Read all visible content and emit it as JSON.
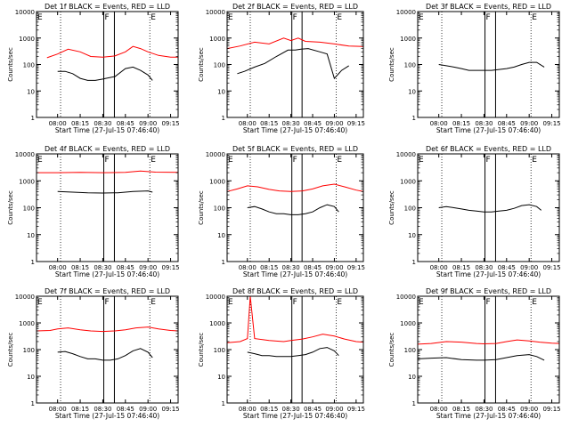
{
  "figure": {
    "background": "#ffffff",
    "axis_color": "#000000",
    "events_color": "#000000",
    "lld_color": "#ff0000"
  },
  "common": {
    "xlabel": "Start Time (27-Jul-15 07:46:40)",
    "ylabel": "Counts/sec",
    "yticks": [
      "1",
      "10",
      "100",
      "1000",
      "10000"
    ],
    "xticks": [
      "08:00",
      "08:15",
      "08:30",
      "08:45",
      "09:00",
      "09:15"
    ],
    "markers": [
      "E",
      "F",
      "E"
    ]
  },
  "chart_data": [
    {
      "type": "line",
      "title": "Det 1f BLACK = Events, RED = LLD",
      "y_scale": "log",
      "ylim": [
        1,
        10000
      ],
      "series": [
        {
          "name": "Events",
          "color": "#000000",
          "x": [
            "08:00",
            "08:05",
            "08:10",
            "08:15",
            "08:20",
            "08:25",
            "08:30",
            "08:32",
            "08:38",
            "08:45",
            "08:50",
            "08:55",
            "09:00",
            "09:03"
          ],
          "values": [
            55,
            55,
            45,
            30,
            25,
            25,
            28,
            30,
            35,
            70,
            80,
            60,
            40,
            25
          ]
        },
        {
          "name": "LLD",
          "color": "#ff0000",
          "x": [
            "07:53",
            "08:00",
            "08:07",
            "08:15",
            "08:22",
            "08:30",
            "08:38",
            "08:45",
            "08:50",
            "08:55",
            "09:00",
            "09:07",
            "09:15",
            "09:20"
          ],
          "values": [
            180,
            250,
            380,
            300,
            200,
            190,
            210,
            300,
            480,
            400,
            300,
            220,
            190,
            190
          ]
        }
      ]
    },
    {
      "type": "line",
      "title": "Det 2f BLACK = Events, RED = LLD",
      "y_scale": "log",
      "ylim": [
        1,
        10000
      ],
      "series": [
        {
          "name": "Events",
          "color": "#000000",
          "x": [
            "07:53",
            "07:58",
            "08:05",
            "08:12",
            "08:20",
            "08:28",
            "08:33",
            "08:37",
            "08:42",
            "08:50",
            "08:55",
            "09:00",
            "09:05",
            "09:10"
          ],
          "values": [
            45,
            55,
            80,
            110,
            200,
            350,
            350,
            380,
            400,
            300,
            250,
            30,
            60,
            90
          ]
        },
        {
          "name": "LLD",
          "color": "#ff0000",
          "x": [
            "07:46",
            "07:55",
            "08:05",
            "08:15",
            "08:25",
            "08:30",
            "08:35",
            "08:40",
            "08:50",
            "09:00",
            "09:10",
            "09:20"
          ],
          "values": [
            400,
            500,
            700,
            600,
            1000,
            800,
            1000,
            750,
            700,
            600,
            500,
            480
          ]
        }
      ]
    },
    {
      "type": "line",
      "title": "Det 3f BLACK = Events, RED = LLD",
      "y_scale": "log",
      "ylim": [
        1,
        10000
      ],
      "series": [
        {
          "name": "Events",
          "color": "#000000",
          "x": [
            "08:00",
            "08:05",
            "08:10",
            "08:15",
            "08:20",
            "08:25",
            "08:30",
            "08:35",
            "08:40",
            "08:45",
            "08:50",
            "08:55",
            "09:00",
            "09:05",
            "09:10"
          ],
          "values": [
            100,
            90,
            80,
            70,
            60,
            60,
            60,
            60,
            65,
            70,
            80,
            100,
            120,
            120,
            80
          ]
        }
      ]
    },
    {
      "type": "line",
      "title": "Det 4f BLACK = Events, RED = LLD",
      "y_scale": "log",
      "ylim": [
        1,
        10000
      ],
      "series": [
        {
          "name": "Events",
          "color": "#000000",
          "x": [
            "08:00",
            "08:10",
            "08:20",
            "08:30",
            "08:40",
            "08:50",
            "09:00",
            "09:03"
          ],
          "values": [
            400,
            380,
            360,
            350,
            360,
            400,
            420,
            380
          ]
        },
        {
          "name": "LLD",
          "color": "#ff0000",
          "x": [
            "07:46",
            "08:00",
            "08:15",
            "08:30",
            "08:45",
            "08:55",
            "09:05",
            "09:20"
          ],
          "values": [
            2000,
            2000,
            2050,
            2000,
            2050,
            2300,
            2100,
            2050
          ]
        }
      ]
    },
    {
      "type": "line",
      "title": "Det 5f BLACK = Events, RED = LLD",
      "y_scale": "log",
      "ylim": [
        1,
        10000
      ],
      "series": [
        {
          "name": "Events",
          "color": "#000000",
          "x": [
            "08:00",
            "08:05",
            "08:10",
            "08:15",
            "08:20",
            "08:25",
            "08:30",
            "08:35",
            "08:40",
            "08:45",
            "08:50",
            "08:55",
            "09:00",
            "09:03"
          ],
          "values": [
            100,
            110,
            90,
            70,
            60,
            60,
            55,
            55,
            60,
            70,
            100,
            130,
            110,
            70
          ]
        },
        {
          "name": "LLD",
          "color": "#ff0000",
          "x": [
            "07:46",
            "07:53",
            "08:00",
            "08:07",
            "08:15",
            "08:22",
            "08:30",
            "08:38",
            "08:45",
            "08:52",
            "09:00",
            "09:07",
            "09:15",
            "09:20"
          ],
          "values": [
            400,
            500,
            650,
            600,
            480,
            420,
            400,
            420,
            500,
            650,
            750,
            600,
            450,
            400
          ]
        }
      ]
    },
    {
      "type": "line",
      "title": "Det 6f BLACK = Events, RED = LLD",
      "y_scale": "log",
      "ylim": [
        1,
        10000
      ],
      "series": [
        {
          "name": "Events",
          "color": "#000000",
          "x": [
            "08:00",
            "08:05",
            "08:10",
            "08:15",
            "08:20",
            "08:25",
            "08:30",
            "08:35",
            "08:40",
            "08:45",
            "08:50",
            "08:55",
            "09:00",
            "09:05",
            "09:08"
          ],
          "values": [
            100,
            110,
            100,
            90,
            80,
            75,
            70,
            70,
            75,
            80,
            95,
            120,
            130,
            110,
            80
          ]
        }
      ]
    },
    {
      "type": "line",
      "title": "Det 7f BLACK = Events, RED = LLD",
      "y_scale": "log",
      "ylim": [
        1,
        10000
      ],
      "series": [
        {
          "name": "Events",
          "color": "#000000",
          "x": [
            "08:00",
            "08:05",
            "08:10",
            "08:15",
            "08:20",
            "08:25",
            "08:30",
            "08:35",
            "08:40",
            "08:45",
            "08:50",
            "08:55",
            "09:00",
            "09:03"
          ],
          "values": [
            80,
            85,
            70,
            55,
            45,
            45,
            40,
            40,
            45,
            60,
            90,
            110,
            80,
            50
          ]
        },
        {
          "name": "LLD",
          "color": "#ff0000",
          "x": [
            "07:46",
            "07:55",
            "08:00",
            "08:07",
            "08:15",
            "08:22",
            "08:30",
            "08:38",
            "08:45",
            "08:52",
            "09:00",
            "09:07",
            "09:15",
            "09:20"
          ],
          "values": [
            500,
            520,
            600,
            650,
            550,
            500,
            480,
            500,
            550,
            650,
            700,
            600,
            520,
            500
          ]
        }
      ]
    },
    {
      "type": "line",
      "title": "Det 8f BLACK = Events, RED = LLD",
      "y_scale": "log",
      "ylim": [
        1,
        10000
      ],
      "series": [
        {
          "name": "Events",
          "color": "#000000",
          "x": [
            "08:00",
            "08:05",
            "08:10",
            "08:15",
            "08:20",
            "08:25",
            "08:30",
            "08:35",
            "08:40",
            "08:45",
            "08:50",
            "08:55",
            "09:00",
            "09:03"
          ],
          "values": [
            80,
            70,
            60,
            60,
            55,
            55,
            55,
            60,
            65,
            80,
            110,
            120,
            90,
            60
          ]
        },
        {
          "name": "LLD",
          "color": "#ff0000",
          "x": [
            "07:46",
            "07:55",
            "08:00",
            "08:02",
            "08:05",
            "08:15",
            "08:25",
            "08:30",
            "08:38",
            "08:45",
            "08:52",
            "09:00",
            "09:07",
            "09:15",
            "09:20"
          ],
          "values": [
            180,
            200,
            260,
            10000,
            260,
            220,
            200,
            220,
            250,
            300,
            380,
            320,
            250,
            200,
            190
          ]
        }
      ]
    },
    {
      "type": "line",
      "title": "Det 9f BLACK = Events, RED = LLD",
      "y_scale": "log",
      "ylim": [
        1,
        10000
      ],
      "series": [
        {
          "name": "Events",
          "color": "#000000",
          "x": [
            "07:46",
            "07:55",
            "08:05",
            "08:15",
            "08:25",
            "08:30",
            "08:38",
            "08:45",
            "08:52",
            "09:00",
            "09:05",
            "09:10"
          ],
          "values": [
            45,
            48,
            50,
            42,
            40,
            40,
            42,
            50,
            60,
            65,
            55,
            40
          ]
        },
        {
          "name": "LLD",
          "color": "#ff0000",
          "x": [
            "07:46",
            "07:55",
            "08:05",
            "08:15",
            "08:25",
            "08:30",
            "08:38",
            "08:45",
            "08:52",
            "09:00",
            "09:07",
            "09:15",
            "09:20"
          ],
          "values": [
            160,
            170,
            200,
            190,
            170,
            165,
            170,
            200,
            230,
            210,
            190,
            175,
            170
          ]
        }
      ]
    }
  ]
}
